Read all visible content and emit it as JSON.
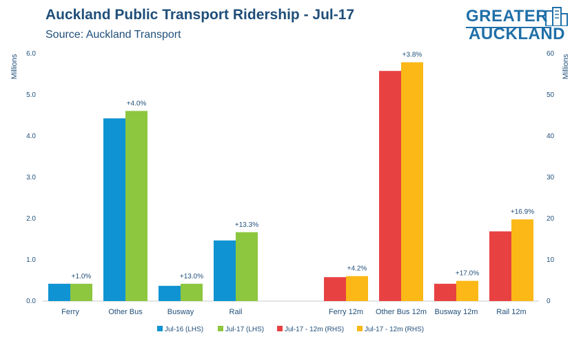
{
  "header": {
    "title": "Auckland Public Transport Ridership - Jul-17",
    "subtitle": "Source: Auckland Transport"
  },
  "logo": {
    "line1": "GREATER",
    "line2": "AUCKLAND",
    "icon": "building-icon"
  },
  "colors": {
    "jul16": "#0f93d2",
    "jul17": "#8dc63f",
    "jul17_12m": "#e84142",
    "jul17_12m_rhs": "#fbb817",
    "text": "#1f4e79",
    "axis": "#1f4e79"
  },
  "chart_data": {
    "type": "bar",
    "left_axis": {
      "label": "Millions",
      "ylim": [
        0,
        6
      ],
      "ticks": [
        "0.0",
        "1.0",
        "2.0",
        "3.0",
        "4.0",
        "5.0",
        "6.0"
      ]
    },
    "right_axis": {
      "label": "Millions",
      "ylim": [
        0,
        60
      ],
      "ticks": [
        "0",
        "10",
        "20",
        "30",
        "40",
        "50",
        "60"
      ]
    },
    "grid": false,
    "legend_position": "bottom",
    "legend": [
      "Jul-16 (LHS)",
      "Jul-17 (LHS)",
      "Jul-17 - 12m (RHS)",
      "Jul-17 - 12m (RHS)"
    ],
    "left_groups": {
      "categories": [
        "Ferry",
        "Other Bus",
        "Busway",
        "Rail"
      ],
      "series": [
        {
          "name": "Jul-16 (LHS)",
          "values": [
            0.42,
            4.43,
            0.37,
            1.47
          ]
        },
        {
          "name": "Jul-17 (LHS)",
          "values": [
            0.42,
            4.61,
            0.42,
            1.67
          ]
        }
      ],
      "labels": [
        "+1.0%",
        "+4.0%",
        "+13.0%",
        "+13.3%"
      ]
    },
    "right_groups": {
      "categories": [
        "Ferry 12m",
        "Other Bus 12m",
        "Busway 12m",
        "Rail 12m"
      ],
      "series": [
        {
          "name": "Jul-17 - 12m (RHS)",
          "values": [
            5.8,
            55.8,
            4.2,
            16.9
          ]
        },
        {
          "name": "Jul-17 - 12m (RHS)",
          "values": [
            6.05,
            57.9,
            4.9,
            19.8
          ]
        }
      ],
      "labels": [
        "+4.2%",
        "+3.8%",
        "+17.0%",
        "+16.9%"
      ]
    }
  }
}
